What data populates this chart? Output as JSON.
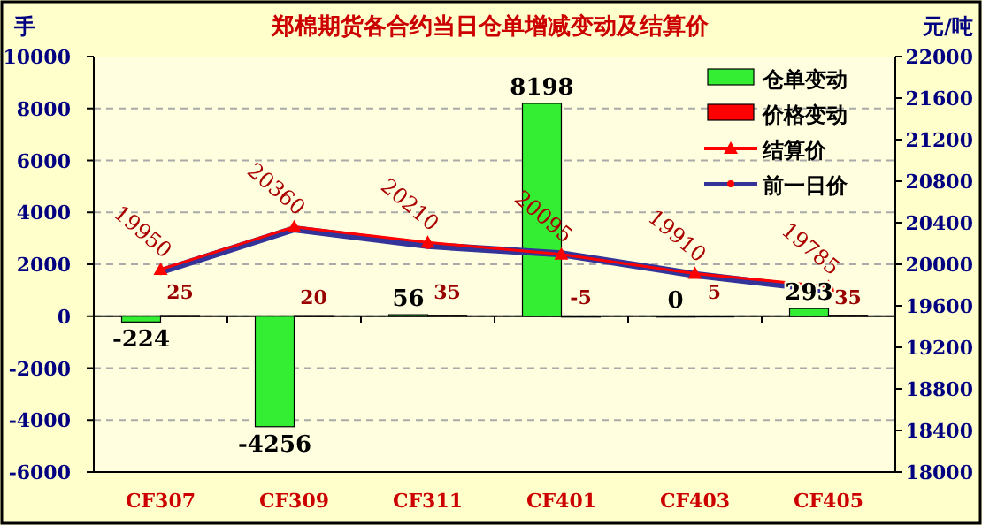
{
  "chart_data": {
    "type": "bar",
    "title": "郑棉期货各合约当日仓单增减变动及结算价",
    "ylabel": "手",
    "y2label": "元/吨",
    "categories": [
      "CF307",
      "CF309",
      "CF311",
      "CF401",
      "CF403",
      "CF405"
    ],
    "series": [
      {
        "name": "仓单变动",
        "color": "#33ee33",
        "values": [
          -224,
          -4256,
          56,
          8198,
          0,
          293
        ],
        "value_labels": [
          "-224",
          "-4256",
          "56",
          "8198",
          "0",
          "293"
        ]
      },
      {
        "name": "价格变动",
        "color": "#ff0000",
        "values": [
          25,
          20,
          35,
          -5,
          5,
          35
        ],
        "value_labels": [
          "25",
          "20",
          "35",
          "-5",
          "5",
          "35"
        ]
      },
      {
        "name": "结算价",
        "type": "line",
        "axis": "y2",
        "color": "#ff0000",
        "marker": "triangle",
        "values": [
          19950,
          20360,
          20210,
          20095,
          19910,
          19785
        ],
        "value_labels": [
          "19950",
          "20360",
          "20210",
          "20095",
          "19910",
          "19785"
        ]
      },
      {
        "name": "前一日价",
        "type": "line",
        "axis": "y2",
        "color": "#333399",
        "marker": "circle",
        "values": [
          19930,
          20340,
          20180,
          20100,
          19900,
          19750
        ]
      }
    ],
    "ylim": [
      -6000,
      10000
    ],
    "yticks": [
      -6000,
      -4000,
      -2000,
      0,
      2000,
      4000,
      6000,
      8000,
      10000
    ],
    "y2lim": [
      18000,
      22000
    ],
    "y2ticks": [
      18000,
      18400,
      18800,
      19200,
      19600,
      20000,
      20400,
      20800,
      21200,
      21600,
      22000
    ],
    "grid": "y",
    "legend": "top right"
  }
}
